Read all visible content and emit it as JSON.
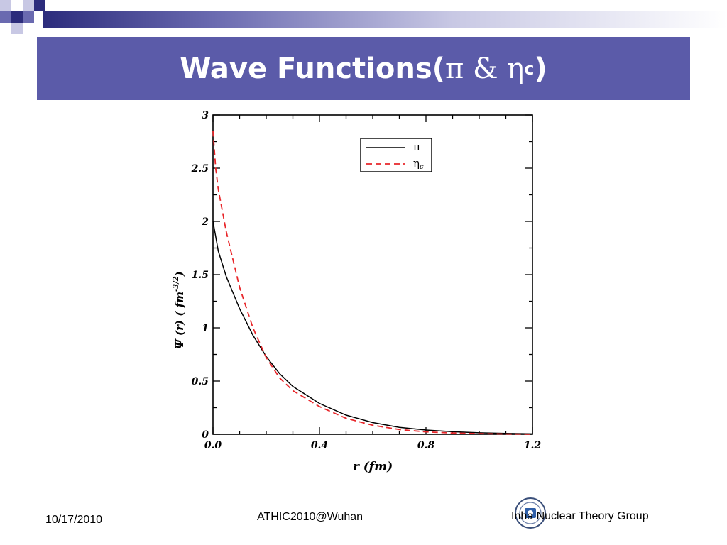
{
  "slide": {
    "title_text": "Wave Functions(",
    "title_pi": "π",
    "title_amp": " & ",
    "title_eta": "η",
    "title_sub": "c",
    "title_close": ")"
  },
  "footer": {
    "date": "10/17/2010",
    "event": "ATHIC2010@Wuhan",
    "group": "Inha Nuclear Theory Group"
  },
  "colors": {
    "title_band": "#5b5ba9",
    "pi_line": "#000000",
    "eta_c_line": "#e8262a"
  },
  "chart_data": {
    "type": "line",
    "xlabel": "r (fm)",
    "ylabel_main": "Ψ (r)  ( fm",
    "ylabel_exp": "-3/2",
    "ylabel_close": ")",
    "xlim": [
      0,
      1.2
    ],
    "ylim": [
      0,
      3
    ],
    "x_ticks": [
      0.0,
      0.4,
      0.8,
      1.2
    ],
    "x_tick_labels": [
      "0.0",
      "0.4",
      "0.8",
      "1.2"
    ],
    "y_ticks": [
      0,
      0.5,
      1,
      1.5,
      2,
      2.5,
      3
    ],
    "y_tick_labels": [
      "0",
      "0.5",
      "1",
      "1.5",
      "2",
      "2.5",
      "3"
    ],
    "legend_position": "top-right",
    "series": [
      {
        "name": "π",
        "style": "solid",
        "x": [
          0,
          0.02,
          0.05,
          0.1,
          0.15,
          0.2,
          0.25,
          0.3,
          0.4,
          0.5,
          0.6,
          0.7,
          0.8,
          0.9,
          1.0,
          1.1,
          1.2
        ],
        "y": [
          2.0,
          1.72,
          1.48,
          1.18,
          0.93,
          0.73,
          0.57,
          0.45,
          0.29,
          0.18,
          0.11,
          0.065,
          0.04,
          0.024,
          0.014,
          0.008,
          0.004
        ]
      },
      {
        "name": "η",
        "name_sub": "c",
        "style": "dashed",
        "x": [
          0,
          0.01,
          0.02,
          0.05,
          0.1,
          0.15,
          0.2,
          0.25,
          0.3,
          0.4,
          0.5,
          0.6,
          0.7,
          0.8,
          0.9,
          1.0,
          1.1,
          1.2
        ],
        "y": [
          2.85,
          2.5,
          2.3,
          1.9,
          1.38,
          1.0,
          0.72,
          0.53,
          0.41,
          0.26,
          0.15,
          0.085,
          0.045,
          0.023,
          0.012,
          0.006,
          0.003,
          0.001
        ]
      }
    ]
  }
}
